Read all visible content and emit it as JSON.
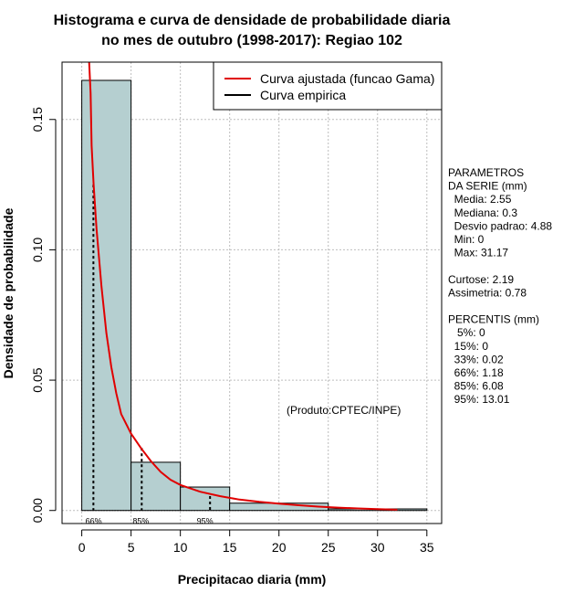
{
  "chart_data": {
    "type": "bar",
    "subtype": "histogram-with-density-curve",
    "title_lines": [
      "Histograma e curva de densidade de probabilidade diaria",
      "no mes de outubro (1998-2017): Regiao 102"
    ],
    "xlabel": "Precipitacao diaria (mm)",
    "ylabel": "Densidade de probabilidade",
    "xlim": [
      -2,
      36.5
    ],
    "ylim": [
      -0.005,
      0.172
    ],
    "x_ticks": [
      0,
      5,
      10,
      15,
      20,
      25,
      30,
      35
    ],
    "y_ticks": [
      0.0,
      0.05,
      0.1,
      0.15
    ],
    "y_tick_labels": [
      "0.00",
      "0.05",
      "0.10",
      "0.15"
    ],
    "grid": true,
    "bins": [
      {
        "start": 0,
        "end": 5,
        "density": 0.165
      },
      {
        "start": 5,
        "end": 10,
        "density": 0.0185
      },
      {
        "start": 10,
        "end": 15,
        "density": 0.009
      },
      {
        "start": 15,
        "end": 25,
        "density": 0.0028
      },
      {
        "start": 25,
        "end": 35,
        "density": 0.0006
      }
    ],
    "fit_curve": {
      "name": "Curva ajustada (funcao Gama)",
      "color": "#e00000",
      "points": [
        [
          0.75,
          0.172
        ],
        [
          0.9,
          0.16
        ],
        [
          1.0,
          0.14
        ],
        [
          1.2,
          0.125
        ],
        [
          1.5,
          0.108
        ],
        [
          2.0,
          0.086
        ],
        [
          2.5,
          0.068
        ],
        [
          3.0,
          0.055
        ],
        [
          3.5,
          0.045
        ],
        [
          4.0,
          0.037
        ],
        [
          5.0,
          0.0295
        ],
        [
          6.0,
          0.024
        ],
        [
          7.0,
          0.019
        ],
        [
          8.0,
          0.0148
        ],
        [
          9.0,
          0.0118
        ],
        [
          10.0,
          0.0098
        ],
        [
          12.0,
          0.0072
        ],
        [
          14.0,
          0.0055
        ],
        [
          16.0,
          0.0042
        ],
        [
          18.0,
          0.0033
        ],
        [
          20.0,
          0.0026
        ],
        [
          22.0,
          0.002
        ],
        [
          24.0,
          0.0015
        ],
        [
          26.0,
          0.0011
        ],
        [
          28.0,
          0.0008
        ],
        [
          30.0,
          0.0005
        ],
        [
          32.0,
          0.0003
        ]
      ]
    },
    "empirical_curve": {
      "name": "Curva empirica",
      "color": "#000000"
    },
    "percentile_markers": [
      {
        "label": "66%",
        "x": 1.18,
        "label_x": 1.2
      },
      {
        "label": "85%",
        "x": 6.08,
        "label_x": 6.0
      },
      {
        "label": "95%",
        "x": 13.01,
        "label_x": 12.5
      }
    ],
    "annotation": "(Produto:CPTEC/INPE)",
    "annotation_pos": [
      5.1,
      0.037
    ],
    "legend_position": "top-right",
    "bar_color": "#b5cfd0"
  },
  "params": {
    "lines": [
      "PARAMETROS",
      "DA SERIE (mm)",
      "  Media: 2.55",
      "  Mediana: 0.3",
      "  Desvio padrao: 4.88",
      "  Min: 0",
      "  Max: 31.17",
      "",
      "Curtose: 2.19",
      "Assimetria: 0.78",
      "",
      "PERCENTIS (mm)",
      "   5%: 0",
      "  15%: 0",
      "  33%: 0.02",
      "  66%: 1.18",
      "  85%: 6.08",
      "  95%: 13.01"
    ]
  }
}
